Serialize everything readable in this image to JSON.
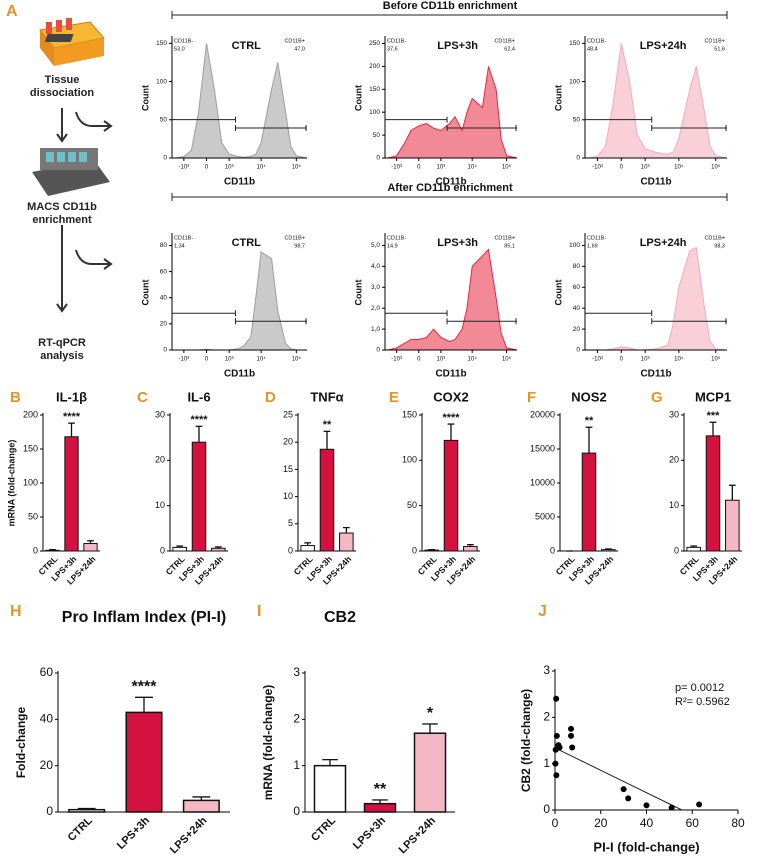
{
  "workflow": {
    "label": "A",
    "steps": [
      "Tissue dissociation",
      "MACS CD11b enrichment",
      "RT-qPCR analysis"
    ]
  },
  "sections": [
    "Before CD11b enrichment",
    "After CD11b enrichment"
  ],
  "chart_data": [
    {
      "type": "area",
      "title": "CTRL",
      "xlabel": "CD11b",
      "ylabel": "Count",
      "color": "#9e9e9e",
      "xscale": "symlog",
      "x": [
        -2000,
        -1000,
        -500,
        -200,
        0,
        200,
        500,
        1000,
        2000,
        3000,
        5000,
        7000,
        10000,
        20000,
        30000,
        50000,
        70000,
        100000,
        200000
      ],
      "values": [
        0,
        2,
        10,
        60,
        150,
        90,
        20,
        5,
        2,
        1,
        2,
        5,
        20,
        90,
        125,
        60,
        15,
        3,
        0
      ],
      "xlim": [
        -2500,
        200000
      ],
      "xticks": [
        {
          "value": -1000,
          "label": "-10³"
        },
        0,
        {
          "value": 1000,
          "label": "10³"
        },
        {
          "value": 10000,
          "label": "10⁴"
        },
        {
          "value": 100000,
          "label": "10⁵"
        }
      ],
      "ylim": [
        0,
        157
      ],
      "yticks": [
        0,
        50,
        100,
        150
      ],
      "gates": {
        "names": [
          "CD11B-",
          "CD11B+"
        ],
        "values": [
          53.0,
          47.0
        ],
        "value_labels": [
          "53,0",
          "47,0"
        ]
      }
    },
    {
      "type": "area",
      "title": "LPS+3h",
      "xlabel": "CD11b",
      "ylabel": "Count",
      "color": "#e8283f",
      "xscale": "symlog",
      "x": [
        -2000,
        -1000,
        -500,
        -200,
        0,
        200,
        500,
        1000,
        2000,
        3000,
        5000,
        7000,
        10000,
        20000,
        30000,
        50000,
        70000,
        100000,
        200000
      ],
      "values": [
        0,
        5,
        30,
        60,
        70,
        75,
        65,
        60,
        75,
        90,
        60,
        100,
        130,
        110,
        200,
        150,
        40,
        5,
        0
      ],
      "xlim": [
        -2500,
        200000
      ],
      "xticks": [
        {
          "value": -1000,
          "label": "-10³"
        },
        0,
        {
          "value": 1000,
          "label": "10³"
        },
        {
          "value": 10000,
          "label": "10⁴"
        },
        {
          "value": 100000,
          "label": "10⁵"
        }
      ],
      "ylim": [
        0,
        262
      ],
      "yticks": [
        0,
        50,
        100,
        150,
        200,
        250
      ],
      "gates": {
        "names": [
          "CD11B-",
          "CD11B+"
        ],
        "values": [
          37.6,
          62.4
        ],
        "value_labels": [
          "37,6",
          "62,4"
        ]
      }
    },
    {
      "type": "area",
      "title": "LPS+24h",
      "xlabel": "CD11b",
      "ylabel": "Count",
      "color": "#f5a9b8",
      "xscale": "symlog",
      "x": [
        -2000,
        -1000,
        -500,
        -200,
        0,
        200,
        500,
        1000,
        2000,
        3000,
        5000,
        7000,
        10000,
        20000,
        30000,
        50000,
        70000,
        100000,
        200000
      ],
      "values": [
        0,
        2,
        15,
        70,
        150,
        100,
        30,
        12,
        8,
        6,
        5,
        8,
        25,
        90,
        120,
        60,
        15,
        3,
        0
      ],
      "xlim": [
        -2500,
        200000
      ],
      "xticks": [
        {
          "value": -1000,
          "label": "-10³"
        },
        0,
        {
          "value": 1000,
          "label": "10³"
        },
        {
          "value": 10000,
          "label": "10⁴"
        },
        {
          "value": 100000,
          "label": "10⁵"
        }
      ],
      "ylim": [
        0,
        157
      ],
      "yticks": [
        0,
        50,
        100,
        150
      ],
      "gates": {
        "names": [
          "CD11B-",
          "CD11B+"
        ],
        "values": [
          48.4,
          51.6
        ],
        "value_labels": [
          "48,4",
          "51,6"
        ]
      }
    },
    {
      "type": "area",
      "title": "CTRL",
      "xlabel": "CD11b",
      "ylabel": "Count",
      "color": "#9e9e9e",
      "xscale": "symlog",
      "x": [
        -2000,
        -1000,
        -500,
        -200,
        0,
        200,
        500,
        1000,
        2000,
        3000,
        5000,
        7000,
        10000,
        20000,
        30000,
        50000,
        70000,
        100000,
        200000
      ],
      "values": [
        0,
        0,
        0,
        0,
        0.5,
        0,
        0,
        0,
        1,
        3,
        10,
        40,
        75,
        70,
        30,
        5,
        1,
        0,
        0
      ],
      "xlim": [
        -2500,
        200000
      ],
      "xticks": [
        {
          "value": -1000,
          "label": "-10³"
        },
        0,
        {
          "value": 1000,
          "label": "10³"
        },
        {
          "value": 10000,
          "label": "10⁴"
        },
        {
          "value": 100000,
          "label": "10⁵"
        }
      ],
      "ylim": [
        0,
        88
      ],
      "yticks": [
        0,
        20,
        40,
        60,
        80
      ],
      "gates": {
        "names": [
          "CD11B-",
          "CD11B+"
        ],
        "values": [
          1.34,
          98.7
        ],
        "value_labels": [
          "1,34",
          "98,7"
        ]
      }
    },
    {
      "type": "area",
      "title": "LPS+3h",
      "xlabel": "CD11b",
      "ylabel": "Count",
      "color": "#e8283f",
      "xscale": "symlog",
      "x": [
        -2000,
        -1000,
        -500,
        -200,
        0,
        200,
        500,
        1000,
        2000,
        3000,
        5000,
        7000,
        10000,
        20000,
        30000,
        50000,
        70000,
        100000,
        200000
      ],
      "values": [
        0,
        0.1,
        0.3,
        0.5,
        0.5,
        0.6,
        1.0,
        0.6,
        0.4,
        0.5,
        1.0,
        2.0,
        4.0,
        4.5,
        4.8,
        2.5,
        0.8,
        0.1,
        0
      ],
      "xlim": [
        -2500,
        200000
      ],
      "xticks": [
        {
          "value": -1000,
          "label": "-10³"
        },
        0,
        {
          "value": 1000,
          "label": "10³"
        },
        {
          "value": 10000,
          "label": "10⁴"
        },
        {
          "value": 100000,
          "label": "10⁵"
        }
      ],
      "ylim": [
        0,
        5.5
      ],
      "yticks": [
        0,
        {
          "value": 1,
          "label": "1,0"
        },
        {
          "value": 2,
          "label": "2,0"
        },
        {
          "value": 3,
          "label": "3,0"
        },
        {
          "value": 4,
          "label": "4,0"
        },
        {
          "value": 5,
          "label": "5,0"
        }
      ],
      "gates": {
        "names": [
          "CD11B-",
          "CD11B+"
        ],
        "values": [
          14.9,
          85.1
        ],
        "value_labels": [
          "14,9",
          "85,1"
        ]
      }
    },
    {
      "type": "area",
      "title": "LPS+24h",
      "xlabel": "CD11b",
      "ylabel": "Count",
      "color": "#f5a9b8",
      "xscale": "symlog",
      "x": [
        -2000,
        -1000,
        -500,
        -200,
        0,
        200,
        500,
        1000,
        2000,
        3000,
        5000,
        7000,
        10000,
        20000,
        30000,
        50000,
        70000,
        100000,
        200000
      ],
      "values": [
        0,
        0,
        0,
        1,
        3,
        2,
        0,
        0,
        1,
        2,
        5,
        25,
        60,
        95,
        98,
        40,
        8,
        1,
        0
      ],
      "xlim": [
        -2500,
        200000
      ],
      "xticks": [
        {
          "value": -1000,
          "label": "-10³"
        },
        0,
        {
          "value": 1000,
          "label": "10³"
        },
        {
          "value": 10000,
          "label": "10⁴"
        },
        {
          "value": 100000,
          "label": "10⁵"
        }
      ],
      "ylim": [
        0,
        110
      ],
      "yticks": [
        0,
        20,
        40,
        60,
        80,
        100
      ],
      "gates": {
        "names": [
          "CD11B-",
          "CD11B+"
        ],
        "values": [
          1.69,
          98.3
        ],
        "value_labels": [
          "1,69",
          "98,3"
        ]
      }
    },
    {
      "type": "bar",
      "label": "B",
      "title": "IL-1β",
      "ylabel": "mRNA (fold-change)",
      "categories": [
        "CTRL",
        "LPS+3h",
        "LPS+24h"
      ],
      "values": [
        1,
        168,
        11
      ],
      "errors": [
        1,
        20,
        4
      ],
      "colors": [
        "#ffffff",
        "#d3123f",
        "#f4b8c4"
      ],
      "significance": [
        null,
        "****",
        null
      ],
      "ylim": [
        0,
        200
      ],
      "yticks": [
        0,
        50,
        100,
        150,
        200
      ]
    },
    {
      "type": "bar",
      "label": "C",
      "title": "IL-6",
      "categories": [
        "CTRL",
        "LPS+3h",
        "LPS+24h"
      ],
      "values": [
        0.8,
        24,
        0.6
      ],
      "errors": [
        0.3,
        3.5,
        0.3
      ],
      "colors": [
        "#ffffff",
        "#d3123f",
        "#f4b8c4"
      ],
      "significance": [
        null,
        "****",
        null
      ],
      "ylim": [
        0,
        30
      ],
      "yticks": [
        0,
        10,
        20,
        30
      ]
    },
    {
      "type": "bar",
      "label": "D",
      "title": "TNFα",
      "categories": [
        "CTRL",
        "LPS+3h",
        "LPS+24h"
      ],
      "values": [
        1,
        18.7,
        3.3
      ],
      "errors": [
        0.5,
        3.3,
        1
      ],
      "colors": [
        "#ffffff",
        "#d3123f",
        "#f4b8c4"
      ],
      "significance": [
        null,
        "**",
        null
      ],
      "ylim": [
        0,
        25
      ],
      "yticks": [
        0,
        5,
        10,
        15,
        20,
        25
      ]
    },
    {
      "type": "bar",
      "label": "E",
      "title": "COX2",
      "categories": [
        "CTRL",
        "LPS+3h",
        "LPS+24h"
      ],
      "values": [
        1,
        122,
        5
      ],
      "errors": [
        0.5,
        18,
        2
      ],
      "colors": [
        "#ffffff",
        "#d3123f",
        "#f4b8c4"
      ],
      "significance": [
        null,
        "****",
        null
      ],
      "ylim": [
        0,
        150
      ],
      "yticks": [
        0,
        50,
        100,
        150
      ]
    },
    {
      "type": "bar",
      "label": "F",
      "title": "NOS2",
      "categories": [
        "CTRL",
        "LPS+3h",
        "LPS+24h"
      ],
      "values": [
        1,
        14400,
        200
      ],
      "errors": [
        0,
        3800,
        100
      ],
      "colors": [
        "#ffffff",
        "#d3123f",
        "#f4b8c4"
      ],
      "significance": [
        null,
        "**",
        null
      ],
      "ylim": [
        0,
        20000
      ],
      "yticks": [
        0,
        5000,
        10000,
        15000,
        20000
      ]
    },
    {
      "type": "bar",
      "label": "G",
      "title": "MCP1",
      "categories": [
        "CTRL",
        "LPS+3h",
        "LPS+24h"
      ],
      "values": [
        0.8,
        25.4,
        11.2
      ],
      "errors": [
        0.3,
        3,
        3.3
      ],
      "colors": [
        "#ffffff",
        "#d3123f",
        "#f4b8c4"
      ],
      "significance": [
        null,
        "***",
        null
      ],
      "ylim": [
        0,
        30
      ],
      "yticks": [
        0,
        10,
        20,
        30
      ]
    },
    {
      "type": "bar",
      "label": "H",
      "title": "Pro Inflam Index (PI-I)",
      "ylabel": "Fold-change",
      "categories": [
        "CTRL",
        "LPS+3h",
        "LPS+24h"
      ],
      "values": [
        1,
        43,
        5
      ],
      "errors": [
        0.5,
        6.5,
        1.5
      ],
      "colors": [
        "#ffffff",
        "#d3123f",
        "#f4b8c4"
      ],
      "significance": [
        null,
        "****",
        null
      ],
      "ylim": [
        0,
        60
      ],
      "yticks": [
        0,
        20,
        40,
        60
      ]
    },
    {
      "type": "bar",
      "label": "I",
      "title": "CB2",
      "ylabel": "mRNA (fold-change)",
      "categories": [
        "CTRL",
        "LPS+3h",
        "LPS+24h"
      ],
      "values": [
        1.0,
        0.18,
        1.7
      ],
      "errors": [
        0.13,
        0.08,
        0.2
      ],
      "colors": [
        "#ffffff",
        "#d3123f",
        "#f4b8c4"
      ],
      "significance": [
        null,
        "**",
        "*"
      ],
      "ylim": [
        0,
        3
      ],
      "yticks": [
        0,
        1,
        2,
        3
      ]
    },
    {
      "type": "scatter",
      "label": "J",
      "xlabel": "PI-I (fold-change)",
      "ylabel": "CB2 (fold-change)",
      "color": "#000000",
      "x": [
        0.5,
        0.8,
        1.5,
        0.3,
        0.2,
        0.6,
        2,
        7,
        7,
        7.5,
        30,
        32,
        40,
        51,
        63
      ],
      "values": [
        2.4,
        1.6,
        1.4,
        1.3,
        1.0,
        0.75,
        1.35,
        1.75,
        1.6,
        1.35,
        0.45,
        0.25,
        0.1,
        0.05,
        0.12
      ],
      "fit": {
        "x": [
          0,
          55.5
        ],
        "y": [
          1.34,
          0
        ]
      },
      "annotations": [
        "p= 0.0012",
        "R²= 0.5962"
      ],
      "xlim": [
        0,
        80
      ],
      "xticks": [
        0,
        20,
        40,
        60,
        80
      ],
      "ylim": [
        0,
        3
      ],
      "yticks": [
        0,
        1,
        2,
        3
      ]
    }
  ]
}
